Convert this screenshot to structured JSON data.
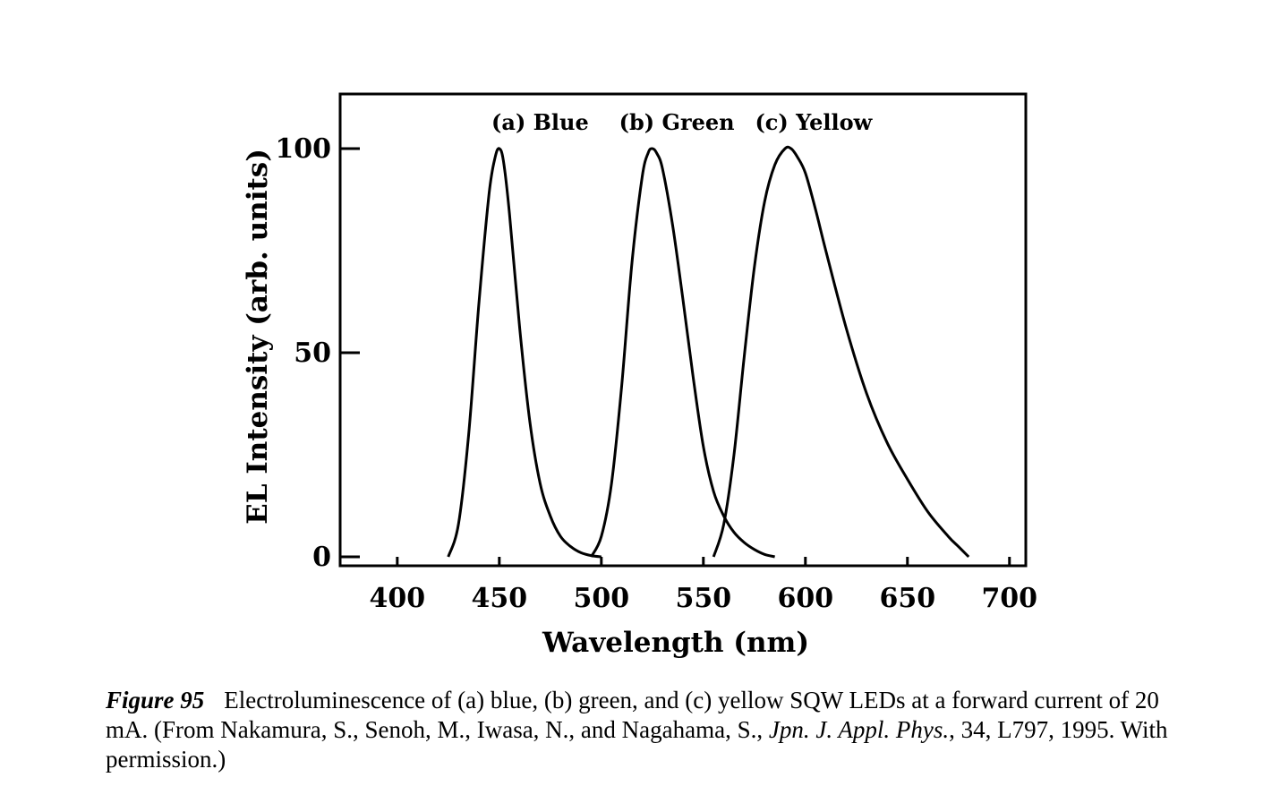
{
  "chart_data": {
    "type": "line",
    "xlabel": "Wavelength (nm)",
    "ylabel": "EL Intensity (arb. units)",
    "xlim": [
      372,
      708
    ],
    "ylim": [
      0,
      115
    ],
    "xticks": [
      400,
      450,
      500,
      550,
      600,
      650,
      700
    ],
    "yticks": [
      0,
      50,
      100
    ],
    "grid": false,
    "series": [
      {
        "name": "(a) Blue",
        "label_at": 470,
        "x": [
          425,
          430,
          435,
          440,
          445,
          448,
          450,
          452,
          455,
          460,
          465,
          470,
          475,
          480,
          485,
          490,
          495,
          500
        ],
        "y": [
          0,
          8,
          30,
          62,
          89,
          98,
          100,
          97,
          84,
          56,
          33,
          18,
          10,
          5,
          2.5,
          1,
          0.3,
          0
        ]
      },
      {
        "name": "(b) Green",
        "label_at": 537,
        "x": [
          495,
          500,
          505,
          510,
          515,
          520,
          523,
          525,
          527,
          530,
          535,
          540,
          545,
          550,
          555,
          560,
          565,
          570,
          575,
          580,
          585
        ],
        "y": [
          0,
          5,
          18,
          42,
          72,
          93,
          99,
          100,
          99,
          95,
          81,
          63,
          44,
          27,
          16,
          10,
          6,
          3.5,
          1.8,
          0.6,
          0
        ]
      },
      {
        "name": "(c) Yellow",
        "label_at": 604,
        "x": [
          555,
          560,
          565,
          570,
          575,
          580,
          585,
          590,
          593,
          596,
          600,
          605,
          610,
          620,
          630,
          640,
          650,
          660,
          670,
          675,
          680
        ],
        "y": [
          0,
          8,
          25,
          49,
          71,
          87,
          96,
          100,
          100,
          98,
          94,
          85,
          75,
          56,
          40,
          28,
          19,
          11,
          5,
          2.5,
          0
        ]
      }
    ]
  },
  "caption": {
    "figure_number": "Figure 95",
    "text_part1": "Electroluminescence of (a) blue, (b) green, and (c) yellow SQW LEDs at a forward current of 20 mA. (From Nakamura, S., Senoh, M., Iwasa, N., and Nagahama, S., ",
    "journal": "Jpn. J. Appl. Phys.",
    "text_part2": ", 34, L797, 1995. With permission.)"
  }
}
